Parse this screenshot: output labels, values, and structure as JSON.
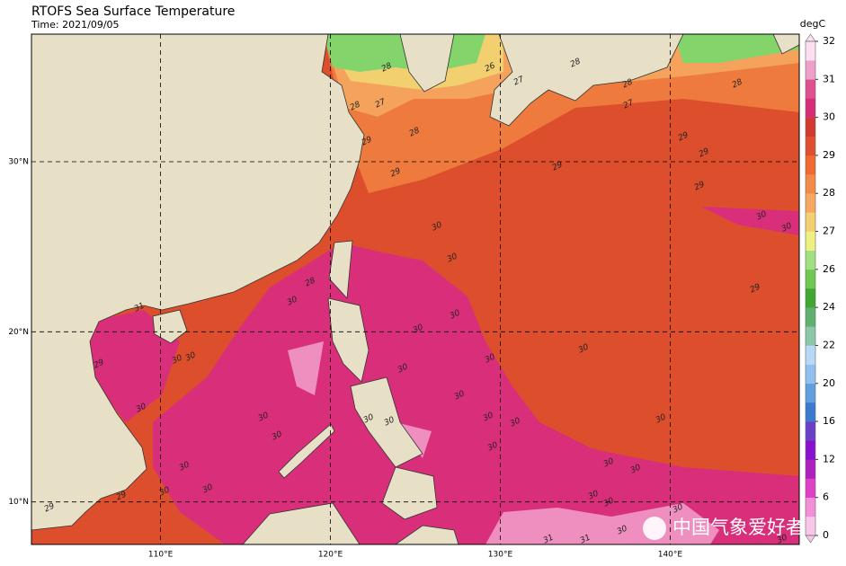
{
  "header": {
    "title": "RTOFS Sea Surface Temperature",
    "subtitle": "Time: 2021/09/05"
  },
  "map": {
    "xlim": [
      102.4,
      147.6
    ],
    "ylim": [
      7.5,
      37.5
    ],
    "xticks": [
      {
        "value": 110,
        "label": "110°E"
      },
      {
        "value": 120,
        "label": "120°E"
      },
      {
        "value": 130,
        "label": "130°E"
      },
      {
        "value": 140,
        "label": "140°E"
      }
    ],
    "yticks": [
      {
        "value": 10,
        "label": "10°N"
      },
      {
        "value": 20,
        "label": "20°N"
      },
      {
        "value": 30,
        "label": "30°N"
      }
    ],
    "grid": true,
    "contour_labels": [
      28,
      26,
      27,
      28,
      27,
      28,
      29,
      29,
      28,
      28,
      27,
      28,
      29,
      29,
      29,
      29,
      30,
      30,
      29,
      30,
      30,
      28,
      30,
      31,
      30,
      30,
      29,
      30,
      30,
      30,
      30,
      30,
      30,
      30,
      30,
      30,
      30,
      30,
      30,
      30,
      30,
      30,
      30,
      30,
      30,
      30,
      30,
      29,
      29,
      30,
      30,
      30,
      31,
      31,
      30,
      30
    ]
  },
  "colorbar": {
    "unit": "degC",
    "ticks": [
      0,
      6,
      12,
      16,
      20,
      22,
      24,
      26,
      27,
      28,
      29,
      30,
      31,
      32
    ],
    "colors": [
      "#f7c6e8",
      "#f28fd6",
      "#e040c8",
      "#b020c0",
      "#8a10d0",
      "#6a40c8",
      "#3a7ad0",
      "#60a0e0",
      "#90c0f0",
      "#b8d8f8",
      "#8cc8a8",
      "#60b070",
      "#40a830",
      "#70c850",
      "#a0e080",
      "#f0f080",
      "#f5d070",
      "#f7a860",
      "#f48a48",
      "#f06a30",
      "#e05030",
      "#d23a30",
      "#d82c78",
      "#e05090",
      "#f0a0c8",
      "#fce0f0"
    ]
  },
  "watermark": "中国气象爱好者"
}
